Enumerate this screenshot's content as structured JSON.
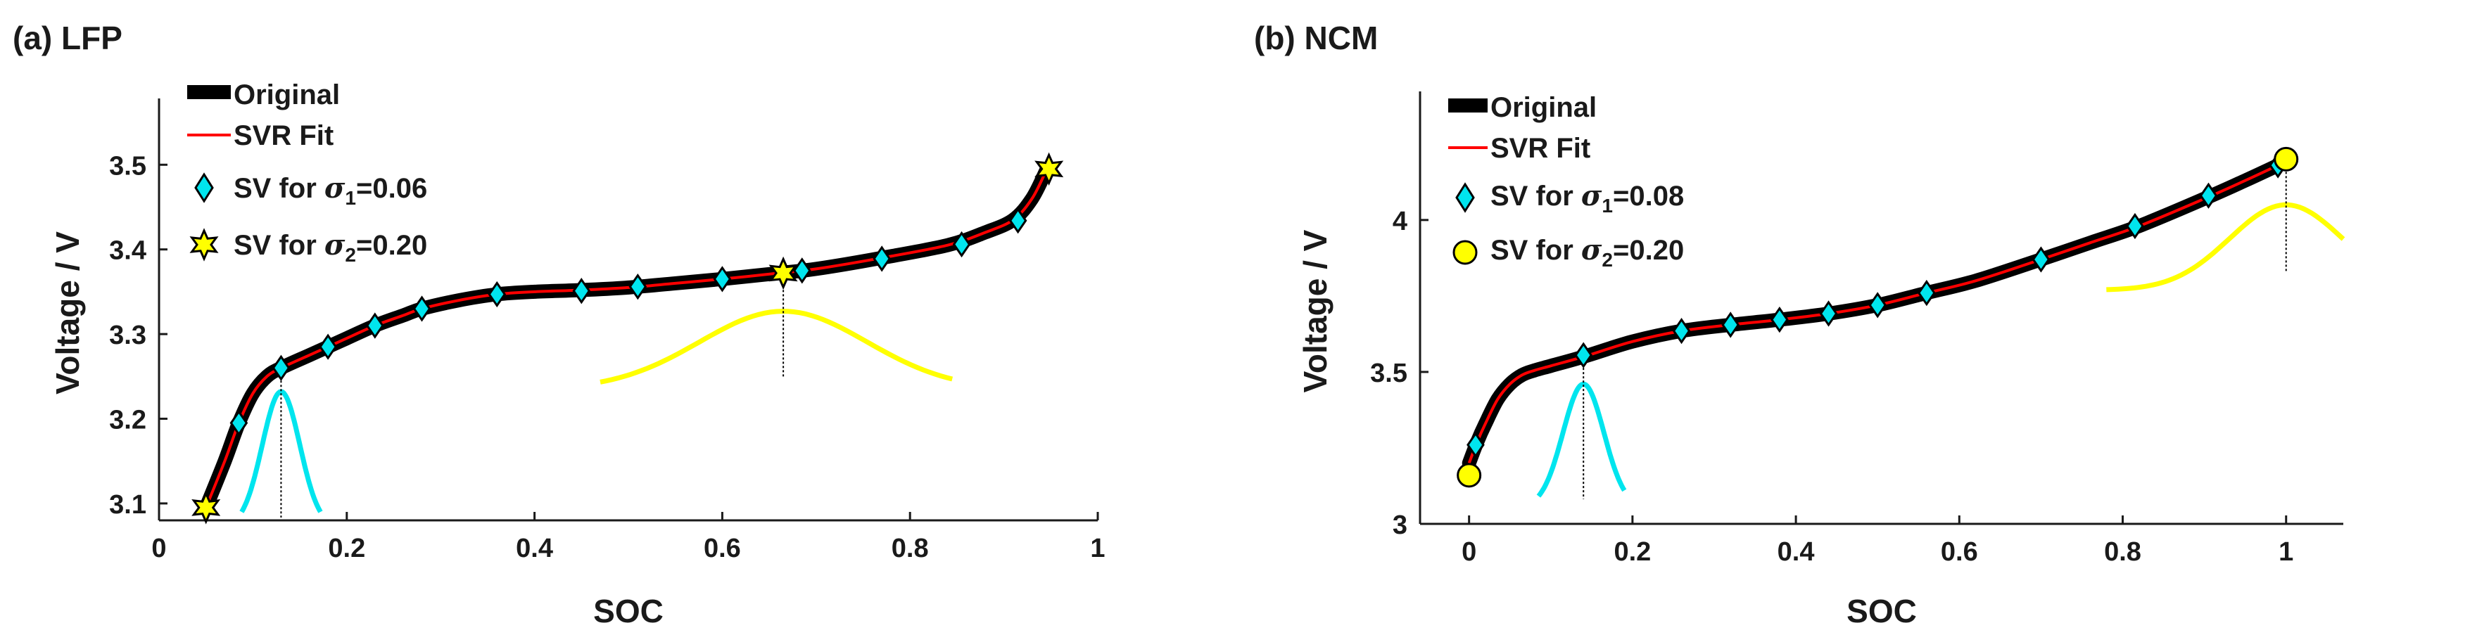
{
  "figure": {
    "panels": 2
  },
  "chart_data": [
    {
      "type": "line",
      "panel_label": "(a) LFP",
      "xlabel": "SOC",
      "ylabel": "Voltage / V",
      "xlim": [
        0,
        1
      ],
      "ylim": [
        3.08,
        3.57
      ],
      "xticks": [
        0,
        0.2,
        0.4,
        0.6,
        0.8,
        1
      ],
      "xtick_labels": [
        "0",
        "0.2",
        "0.4",
        "0.6",
        "0.8",
        "1"
      ],
      "yticks": [
        3.1,
        3.2,
        3.3,
        3.4,
        3.5
      ],
      "ytick_labels": [
        "3.1",
        "3.2",
        "3.3",
        "3.4",
        "3.5"
      ],
      "grid": false,
      "legend_position": "top-left",
      "legend": {
        "original": "Original",
        "fit": "SVR Fit",
        "sv1_prefix": "SV for ",
        "sv1_symbol": "σ",
        "sv1_sub": "1",
        "sv1_value": "=0.06",
        "sv2_prefix": "SV for ",
        "sv2_symbol": "σ",
        "sv2_sub": "2",
        "sv2_value": "=0.20"
      },
      "colors": {
        "original": "#000000",
        "fit": "#ff0000",
        "sv1": "#00e5ee",
        "sv2": "#ffff00",
        "kernel1": "#00e5ee",
        "kernel2": "#ffff00"
      },
      "series": [
        {
          "name": "Original",
          "x": [
            0.05,
            0.07,
            0.085,
            0.1,
            0.115,
            0.13,
            0.16,
            0.18,
            0.2,
            0.23,
            0.26,
            0.28,
            0.32,
            0.36,
            0.4,
            0.45,
            0.5,
            0.55,
            0.6,
            0.66,
            0.7,
            0.77,
            0.84,
            0.88,
            0.91,
            0.93,
            0.945
          ],
          "y": [
            3.095,
            3.15,
            3.195,
            3.23,
            3.25,
            3.26,
            3.275,
            3.285,
            3.295,
            3.31,
            3.322,
            3.33,
            3.34,
            3.347,
            3.35,
            3.352,
            3.355,
            3.36,
            3.365,
            3.372,
            3.377,
            3.39,
            3.405,
            3.42,
            3.435,
            3.46,
            3.493
          ]
        }
      ],
      "support_vectors_sigma1": {
        "x": [
          0.085,
          0.13,
          0.18,
          0.23,
          0.28,
          0.36,
          0.45,
          0.51,
          0.6,
          0.685,
          0.77,
          0.855,
          0.915
        ],
        "y": [
          3.195,
          3.26,
          3.285,
          3.31,
          3.33,
          3.347,
          3.351,
          3.356,
          3.365,
          3.375,
          3.389,
          3.406,
          3.434
        ]
      },
      "support_vectors_sigma2": {
        "x": [
          0.05,
          0.665,
          0.948
        ],
        "y": [
          3.095,
          3.372,
          3.495
        ]
      },
      "kernels": [
        {
          "center": 0.13,
          "sigma": 0.06,
          "base": 3.09,
          "peak": 3.232,
          "xrange": [
            0.088,
            0.172
          ]
        },
        {
          "center": 0.665,
          "sigma": 0.2,
          "base": 3.245,
          "peak": 3.327,
          "xrange": [
            0.47,
            0.845
          ]
        }
      ]
    },
    {
      "type": "line",
      "panel_label": "(b) NCM",
      "xlabel": "SOC",
      "ylabel": "Voltage / V",
      "xlim": [
        -0.06,
        1.07
      ],
      "ylim": [
        3.0,
        4.4
      ],
      "xticks": [
        0,
        0.2,
        0.4,
        0.6,
        0.8,
        1
      ],
      "xtick_labels": [
        "0",
        "0.2",
        "0.4",
        "0.6",
        "0.8",
        "1"
      ],
      "yticks": [
        3,
        3.5,
        4
      ],
      "ytick_labels": [
        "3",
        "3.5",
        "4"
      ],
      "grid": false,
      "legend_position": "top-left",
      "legend": {
        "original": "Original",
        "fit": "SVR Fit",
        "sv1_prefix": "SV for ",
        "sv1_symbol": "σ",
        "sv1_sub": "1",
        "sv1_value": "=0.08",
        "sv2_prefix": "SV for ",
        "sv2_symbol": "σ",
        "sv2_sub": "2",
        "sv2_value": "=0.20"
      },
      "colors": {
        "original": "#000000",
        "fit": "#ff0000",
        "sv1": "#00e5ee",
        "sv2": "#ffff00",
        "kernel1": "#00e5ee",
        "kernel2": "#ffff00"
      },
      "series": [
        {
          "name": "Original",
          "x": [
            0.0,
            0.01,
            0.02,
            0.035,
            0.05,
            0.065,
            0.08,
            0.1,
            0.14,
            0.2,
            0.26,
            0.32,
            0.38,
            0.44,
            0.5,
            0.56,
            0.62,
            0.7,
            0.76,
            0.82,
            0.9,
            0.95,
            0.99
          ],
          "y": [
            3.2,
            3.27,
            3.33,
            3.41,
            3.46,
            3.49,
            3.505,
            3.52,
            3.55,
            3.6,
            3.635,
            3.655,
            3.672,
            3.692,
            3.72,
            3.76,
            3.8,
            3.87,
            3.925,
            3.98,
            4.07,
            4.13,
            4.18
          ]
        }
      ],
      "support_vectors_sigma1": {
        "x": [
          0.008,
          0.14,
          0.26,
          0.32,
          0.38,
          0.44,
          0.5,
          0.56,
          0.7,
          0.815,
          0.905,
          0.99
        ],
        "y": [
          3.26,
          3.555,
          3.635,
          3.655,
          3.672,
          3.692,
          3.72,
          3.76,
          3.87,
          3.98,
          4.08,
          4.18
        ]
      },
      "support_vectors_sigma2": {
        "x": [
          0.0,
          1.0
        ],
        "y": [
          3.16,
          4.2
        ]
      },
      "kernels": [
        {
          "center": 0.14,
          "sigma": 0.08,
          "base": 3.1,
          "peak": 3.46,
          "xrange": [
            0.085,
            0.19
          ]
        },
        {
          "center": 1.0,
          "sigma": 0.2,
          "base": 3.8,
          "peak": 4.05,
          "xrange": [
            0.78,
            1.07
          ]
        }
      ]
    }
  ]
}
